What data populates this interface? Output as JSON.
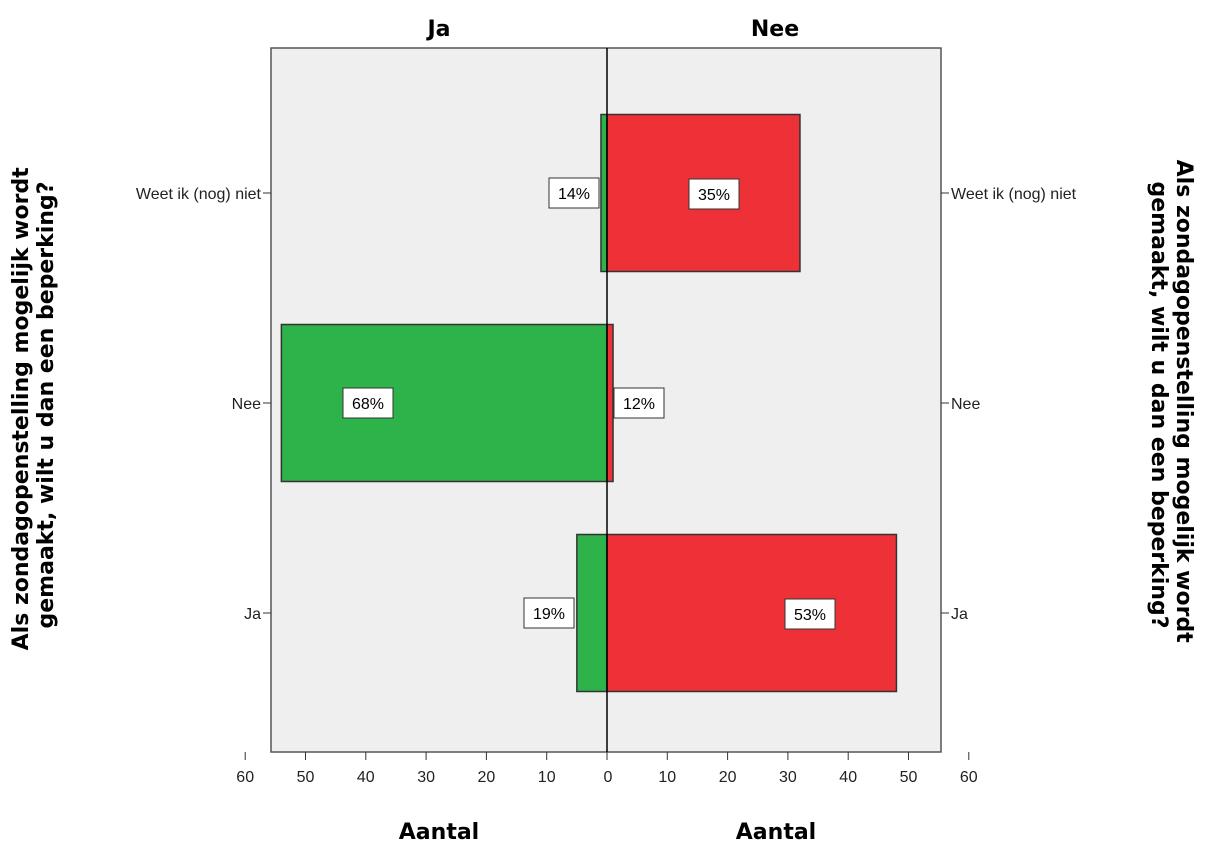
{
  "chart_data": {
    "type": "bar",
    "orientation": "horizontal",
    "layout": "back-to-back (population pyramid)",
    "panels": [
      "Ja",
      "Nee"
    ],
    "categories": [
      "Weet ik (nog) niet",
      "Nee",
      "Ja"
    ],
    "y_axis_title": "Als zondagopenstelling mogelijk wordt gemaakt, wilt u dan een beperking?",
    "x_axis_title": "Aantal",
    "xlim": [
      0,
      60
    ],
    "x_ticks": [
      0,
      10,
      20,
      30,
      40,
      50,
      60
    ],
    "series": [
      {
        "name": "Ja",
        "side": "left",
        "color": "#2db34a",
        "values": [
          1,
          54,
          5
        ],
        "labels": [
          "14%",
          "68%",
          "19%"
        ]
      },
      {
        "name": "Nee",
        "side": "right",
        "color": "#ee3137",
        "values": [
          32,
          1,
          48
        ],
        "labels": [
          "35%",
          "12%",
          "53%"
        ]
      }
    ],
    "plot_background": "#efefef",
    "grid": false,
    "legend": "none"
  }
}
